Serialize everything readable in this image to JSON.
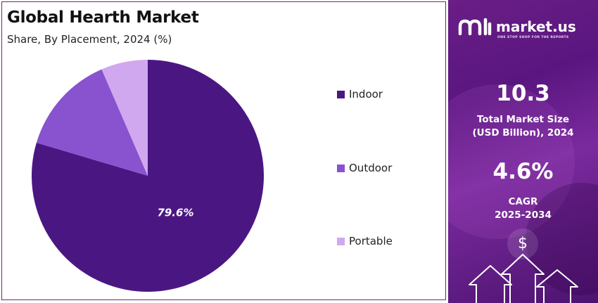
{
  "chart_data": {
    "type": "pie",
    "title": "Global Hearth Market",
    "subtitle": "Share, By Placement, 2024 (%)",
    "categories": [
      "Indoor",
      "Outdoor",
      "Portable"
    ],
    "values": [
      79.6,
      13.9,
      6.5
    ],
    "data_labels": [
      "79.6%",
      "",
      ""
    ],
    "colors": [
      "#4a1782",
      "#8952cf",
      "#d0a8ef"
    ],
    "legend_position": "right"
  },
  "brand": {
    "name": "market.us",
    "tagline": "ONE STOP SHOP FOR THE REPORTS",
    "icon": "market-us-logo"
  },
  "stats": {
    "market_size_value": "10.3",
    "market_size_label_1": "Total Market Size",
    "market_size_label_2": "(USD Billion), 2024",
    "cagr_value": "4.6%",
    "cagr_label_1": "CAGR",
    "cagr_label_2": "2025-2034"
  },
  "decor": {
    "dollar_symbol": "$",
    "icons": [
      "dollar-icon",
      "up-arrow-icon"
    ]
  }
}
